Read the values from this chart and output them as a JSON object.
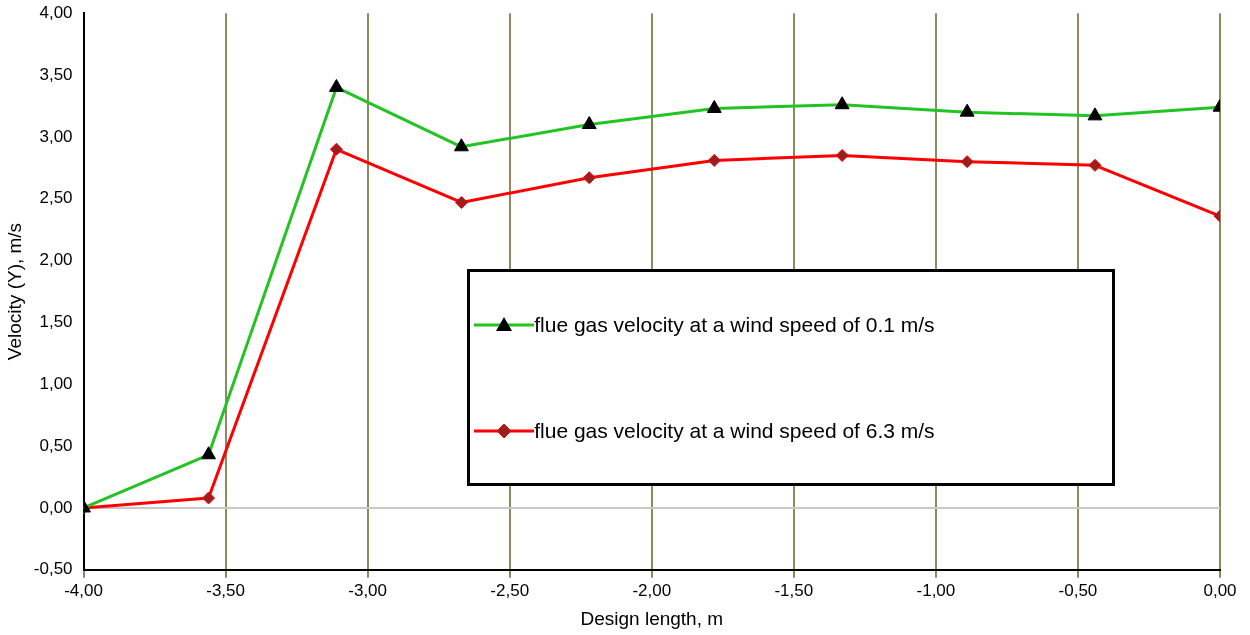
{
  "chart_data": {
    "type": "line",
    "xlabel": "Design length, m",
    "ylabel": "Velocity (Y), m/s",
    "x": [
      -4.0,
      -3.56,
      -3.11,
      -2.67,
      -2.22,
      -1.78,
      -1.33,
      -0.89,
      -0.44,
      0.0
    ],
    "series": [
      {
        "name": "flue gas velocity at a wind speed of 0.1 m/s",
        "color": "#22c322",
        "marker": "triangle",
        "values": [
          0,
          0.43,
          3.4,
          2.92,
          3.1,
          3.23,
          3.26,
          3.2,
          3.17,
          3.24
        ]
      },
      {
        "name": "flue gas velocity at a wind speed of 6.3 m/s",
        "color": "#ff0000",
        "marker": "diamond",
        "values": [
          0,
          0.08,
          2.9,
          2.47,
          2.67,
          2.81,
          2.85,
          2.8,
          2.77,
          2.36
        ]
      }
    ],
    "xlim": [
      -4.0,
      0.0
    ],
    "xticks": [
      {
        "value": -4,
        "label": "-4,00"
      },
      {
        "value": -3.5,
        "label": "-3,50"
      },
      {
        "value": -3,
        "label": "-3,00"
      },
      {
        "value": -2.5,
        "label": "-2,50"
      },
      {
        "value": -2,
        "label": "-2,00"
      },
      {
        "value": -1.5,
        "label": "-1,50"
      },
      {
        "value": -1,
        "label": "-1,00"
      },
      {
        "value": -0.5,
        "label": "-0,50"
      },
      {
        "value": 0,
        "label": "0,00"
      }
    ],
    "ylim": [
      -0.5,
      4.0
    ],
    "yticks": [
      {
        "value": -0.5,
        "label": "-0,50"
      },
      {
        "value": 0,
        "label": "0,00"
      },
      {
        "value": 0.5,
        "label": "0,50"
      },
      {
        "value": 1,
        "label": "1,00"
      },
      {
        "value": 1.5,
        "label": "1,50"
      },
      {
        "value": 2,
        "label": "2,00"
      },
      {
        "value": 2.5,
        "label": "2,50"
      },
      {
        "value": 3,
        "label": "3,00"
      },
      {
        "value": 3.5,
        "label": "3,50"
      },
      {
        "value": 4,
        "label": "4,00"
      }
    ],
    "ref_lines": [
      {
        "axis": "y",
        "value": 0,
        "color": "#c8c8c8"
      }
    ],
    "grid": "x",
    "legend": "right"
  }
}
